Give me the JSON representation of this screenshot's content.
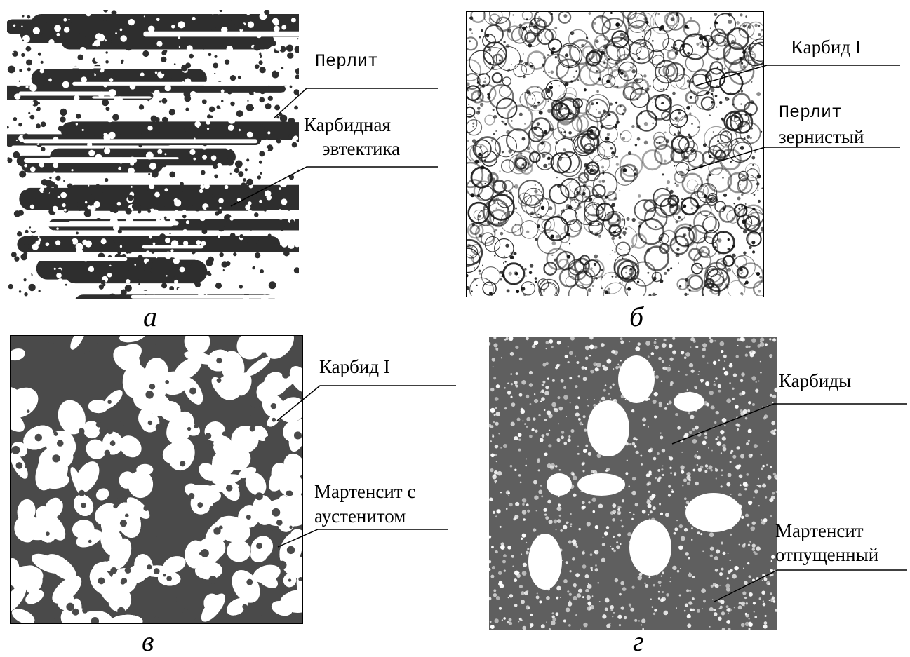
{
  "panels": [
    {
      "id": "a",
      "caption": "а",
      "labels": [
        {
          "text": "Перлит",
          "mono": true
        },
        {
          "text": "Карбидная"
        },
        {
          "text": "эвтектика"
        }
      ]
    },
    {
      "id": "b",
      "caption": "б",
      "labels": [
        {
          "text": "Карбид I"
        },
        {
          "text": "Перлит",
          "mono": true
        },
        {
          "text": "зернистый"
        }
      ]
    },
    {
      "id": "v",
      "caption": "в",
      "labels": [
        {
          "text": "Карбид I"
        },
        {
          "text": "Мартенсит с"
        },
        {
          "text": "аустенитом"
        }
      ]
    },
    {
      "id": "g",
      "caption": "г",
      "labels": [
        {
          "text": "Карбиды"
        },
        {
          "text": "Мартенсит"
        },
        {
          "text": "отпущенный"
        }
      ]
    }
  ],
  "colors": {
    "ink": "#000000",
    "dark_phase_a": "#2e2e2e",
    "dark_phase_v": "#4a4a4a",
    "matrix_g": "#5f5f5f"
  }
}
